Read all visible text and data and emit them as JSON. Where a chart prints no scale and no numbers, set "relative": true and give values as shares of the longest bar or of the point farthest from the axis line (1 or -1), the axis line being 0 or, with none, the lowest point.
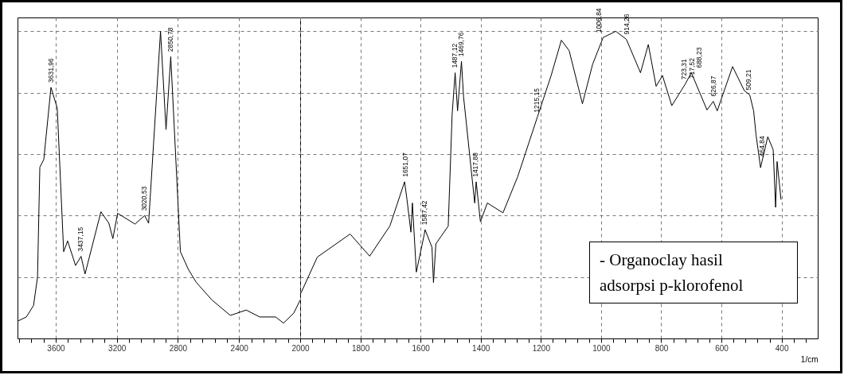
{
  "chart_data": [
    {
      "type": "line",
      "relative": true,
      "grid": true,
      "xlim": [
        3850,
        2000
      ],
      "xticks": [
        {
          "value": 3840,
          "label": null
        },
        {
          "value": 3760,
          "label": null
        },
        {
          "value": 3680,
          "label": null
        },
        3600,
        {
          "value": 3520,
          "label": null
        },
        {
          "value": 3440,
          "label": null
        },
        {
          "value": 3360,
          "label": null
        },
        {
          "value": 3280,
          "label": null
        },
        3200,
        {
          "value": 3120,
          "label": null
        },
        {
          "value": 3040,
          "label": null
        },
        {
          "value": 2960,
          "label": null
        },
        {
          "value": 2880,
          "label": null
        },
        2800,
        {
          "value": 2720,
          "label": null
        },
        {
          "value": 2640,
          "label": null
        },
        {
          "value": 2560,
          "label": null
        },
        {
          "value": 2480,
          "label": null
        },
        2400,
        {
          "value": 2320,
          "label": null
        },
        {
          "value": 2240,
          "label": null
        },
        {
          "value": 2160,
          "label": null
        },
        {
          "value": 2080,
          "label": null
        }
      ],
      "x": [
        3844,
        3792,
        3745,
        3719,
        3704,
        3678,
        3631,
        3590,
        3548,
        3522,
        3470,
        3434,
        3408,
        3304,
        3252,
        3226,
        3195,
        3081,
        3018,
        2992,
        2914,
        2878,
        2847,
        2784,
        2732,
        2680,
        2577,
        2457,
        2353,
        2265,
        2161,
        2109,
        2042,
        2000
      ],
      "series": [
        {
          "color": "#000000",
          "values": [
            0.0575,
            0.07,
            0.1075,
            0.2,
            0.5575,
            0.5825,
            0.8175,
            0.75,
            0.2825,
            0.3175,
            0.2375,
            0.2675,
            0.21,
            0.4125,
            0.375,
            0.325,
            0.4075,
            0.3725,
            0.4,
            0.375,
            1.0,
            0.68,
            0.9175,
            0.2825,
            0.225,
            0.1825,
            0.125,
            0.075,
            0.0925,
            0.07,
            0.07,
            0.05,
            0.0825,
            0.125
          ]
        }
      ],
      "annotations": [
        {
          "text": "3631,96",
          "x": 3631.96,
          "y": 0.8175
        },
        {
          "text": "3437,15",
          "x": 3437.15,
          "y": 0.2675
        },
        {
          "text": "3020,53",
          "x": 3020.53,
          "y": 0.4
        },
        {
          "text": "2850,78",
          "x": 2850.78,
          "y": 0.9175
        }
      ]
    },
    {
      "type": "line",
      "relative": true,
      "grid": true,
      "xlabel": "1/cm",
      "xlim": [
        2000,
        280
      ],
      "xticks": [
        2000,
        {
          "value": 1960,
          "label": null
        },
        {
          "value": 1920,
          "label": null
        },
        {
          "value": 1880,
          "label": null
        },
        {
          "value": 1840,
          "label": null
        },
        1800,
        {
          "value": 1760,
          "label": null
        },
        {
          "value": 1720,
          "label": null
        },
        {
          "value": 1680,
          "label": null
        },
        {
          "value": 1640,
          "label": null
        },
        1600,
        {
          "value": 1560,
          "label": null
        },
        {
          "value": 1520,
          "label": null
        },
        {
          "value": 1480,
          "label": null
        },
        {
          "value": 1440,
          "label": null
        },
        1400,
        {
          "value": 1360,
          "label": null
        },
        {
          "value": 1320,
          "label": null
        },
        {
          "value": 1280,
          "label": null
        },
        {
          "value": 1240,
          "label": null
        },
        1200,
        {
          "value": 1160,
          "label": null
        },
        {
          "value": 1120,
          "label": null
        },
        {
          "value": 1080,
          "label": null
        },
        {
          "value": 1040,
          "label": null
        },
        1000,
        {
          "value": 960,
          "label": null
        },
        {
          "value": 920,
          "label": null
        },
        {
          "value": 880,
          "label": null
        },
        {
          "value": 840,
          "label": null
        },
        800,
        {
          "value": 760,
          "label": null
        },
        {
          "value": 720,
          "label": null
        },
        {
          "value": 680,
          "label": null
        },
        {
          "value": 640,
          "label": null
        },
        600,
        {
          "value": 560,
          "label": null
        },
        {
          "value": 520,
          "label": null
        },
        {
          "value": 480,
          "label": null
        },
        {
          "value": 440,
          "label": null
        },
        400,
        {
          "value": 360,
          "label": null
        },
        {
          "value": 320,
          "label": null
        }
      ],
      "x": [
        2000,
        1995,
        1943,
        1834,
        1769,
        1702,
        1653,
        1645,
        1632,
        1627,
        1614,
        1588,
        1585,
        1562,
        1557,
        1549,
        1508,
        1495,
        1485,
        1477,
        1464,
        1457,
        1420,
        1415,
        1401,
        1378,
        1326,
        1277,
        1212,
        1166,
        1132,
        1106,
        1062,
        1028,
        993,
        951,
        916,
        869,
        843,
        817,
        796,
        765,
        721,
        700,
        648,
        627,
        614,
        563,
        524,
        506,
        493,
        485,
        470,
        446,
        428,
        420,
        415,
        402
      ],
      "series": [
        {
          "color": "#000000",
          "values": [
            0.144,
            0.153,
            0.265,
            0.34,
            0.268,
            0.366,
            0.51,
            0.452,
            0.346,
            0.441,
            0.216,
            0.337,
            0.354,
            0.297,
            0.182,
            0.308,
            0.366,
            0.729,
            0.865,
            0.741,
            0.902,
            0.787,
            0.441,
            0.51,
            0.38,
            0.441,
            0.409,
            0.527,
            0.72,
            0.856,
            0.971,
            0.937,
            0.764,
            0.893,
            0.98,
            1.0,
            0.974,
            0.865,
            0.957,
            0.821,
            0.856,
            0.758,
            0.827,
            0.865,
            0.744,
            0.772,
            0.741,
            0.885,
            0.807,
            0.793,
            0.741,
            0.663,
            0.556,
            0.657,
            0.614,
            0.427,
            0.576,
            0.452
          ]
        }
      ],
      "annotations": [
        {
          "text": "1651,07",
          "x": 1651.07,
          "y": 0.51
        },
        {
          "text": "1587,42",
          "x": 1587.42,
          "y": 0.354
        },
        {
          "text": "1487,12",
          "x": 1487.12,
          "y": 0.865
        },
        {
          "text": "1469,76",
          "x": 1469.76,
          "y": 0.902
        },
        {
          "text": "1417,88",
          "x": 1417.88,
          "y": 0.51
        },
        {
          "text": "1215,15",
          "x": 1215.15,
          "y": 0.72
        },
        {
          "text": "1006,84",
          "x": 1006.84,
          "y": 0.98
        },
        {
          "text": "914,26",
          "x": 914.26,
          "y": 0.974
        },
        {
          "text": "723,31",
          "x": 723.31,
          "y": 0.827
        },
        {
          "text": "717,52",
          "x": 717.52,
          "y": 0.83
        },
        {
          "text": "688,23",
          "x": 688.23,
          "y": 0.865
        },
        {
          "text": "626,87",
          "x": 626.87,
          "y": 0.772
        },
        {
          "text": "509,21",
          "x": 509.21,
          "y": 0.793
        },
        {
          "text": "464,84",
          "x": 464.84,
          "y": 0.576
        },
        "- Organoclay hasil adsorpsi p-klorofenol"
      ]
    }
  ]
}
